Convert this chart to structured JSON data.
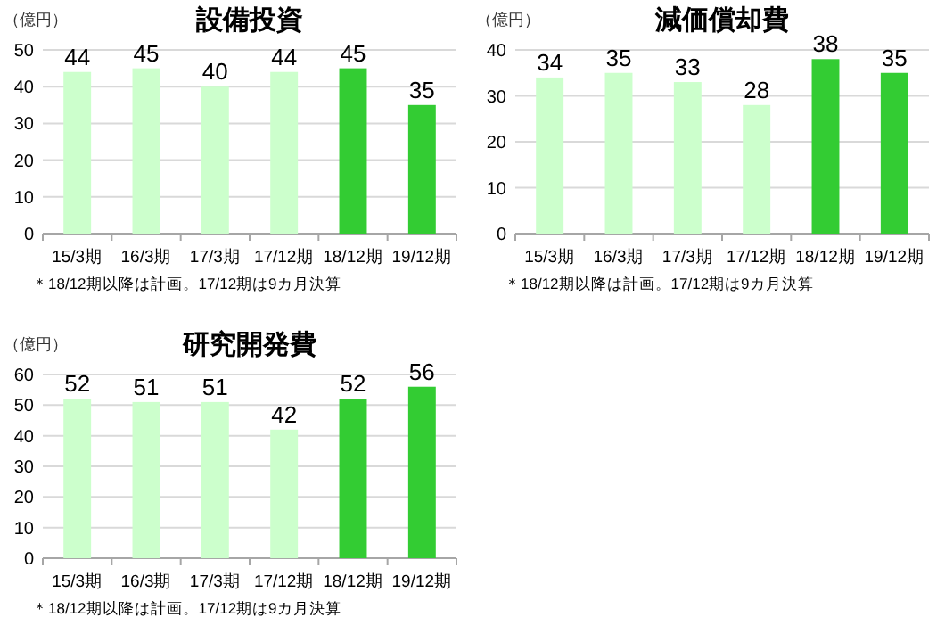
{
  "chart_data": [
    {
      "type": "bar",
      "title": "設備投資",
      "ylabel": "（億円）",
      "categories": [
        "15/3期",
        "16/3期",
        "17/3期",
        "17/12期",
        "18/12期",
        "19/12期"
      ],
      "values": [
        44,
        45,
        40,
        44,
        45,
        35
      ],
      "colors": [
        "#ccffcc",
        "#ccffcc",
        "#ccffcc",
        "#ccffcc",
        "#33cc33",
        "#33cc33"
      ],
      "ylim": [
        0,
        50
      ],
      "yticks": [
        0,
        10,
        20,
        30,
        40,
        50
      ],
      "grid": "y",
      "data_labels": true,
      "annotations": [
        "＊18/12期以降は計画。17/12期は9カ月決算"
      ]
    },
    {
      "type": "bar",
      "title": "減価償却費",
      "ylabel": "（億円）",
      "categories": [
        "15/3期",
        "16/3期",
        "17/3期",
        "17/12期",
        "18/12期",
        "19/12期"
      ],
      "values": [
        34,
        35,
        33,
        28,
        38,
        35
      ],
      "colors": [
        "#ccffcc",
        "#ccffcc",
        "#ccffcc",
        "#ccffcc",
        "#33cc33",
        "#33cc33"
      ],
      "ylim": [
        0,
        40
      ],
      "yticks": [
        0,
        10,
        20,
        30,
        40
      ],
      "grid": "y",
      "data_labels": true,
      "annotations": [
        "＊18/12期以降は計画。17/12期は9カ月決算"
      ]
    },
    {
      "type": "bar",
      "title": "研究開発費",
      "ylabel": "（億円）",
      "categories": [
        "15/3期",
        "16/3期",
        "17/3期",
        "17/12期",
        "18/12期",
        "19/12期"
      ],
      "values": [
        52,
        51,
        51,
        42,
        52,
        56
      ],
      "colors": [
        "#ccffcc",
        "#ccffcc",
        "#ccffcc",
        "#ccffcc",
        "#33cc33",
        "#33cc33"
      ],
      "ylim": [
        0,
        60
      ],
      "yticks": [
        0,
        10,
        20,
        30,
        40,
        50,
        60
      ],
      "grid": "y",
      "data_labels": true,
      "annotations": [
        "＊18/12期以降は計画。17/12期は9カ月決算"
      ]
    }
  ]
}
